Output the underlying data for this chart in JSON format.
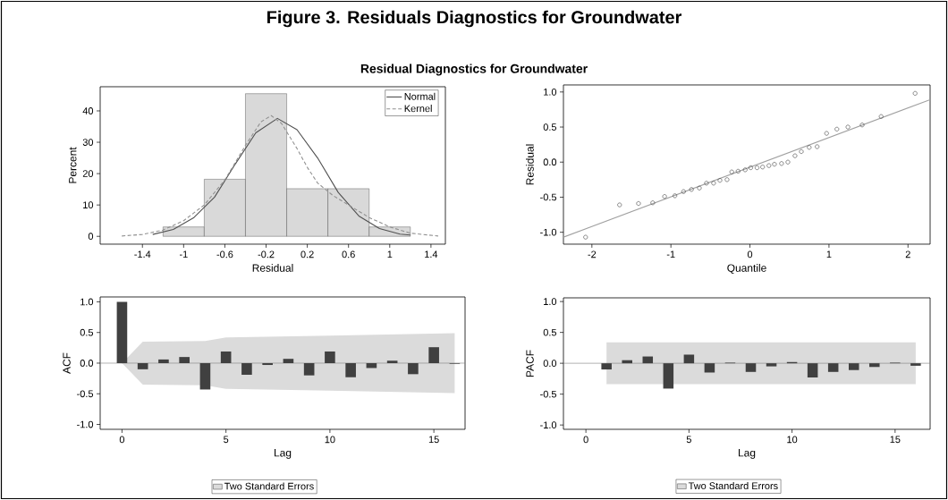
{
  "chart_data": [
    {
      "type": "histogram",
      "title": "Figure 3. Residuals Diagnostics for Groundwater",
      "subtitle": "Residual Diagnostics for Groundwater",
      "xlabel": "Residual",
      "ylabel": "Percent",
      "bins": [
        -1.2,
        -0.8,
        -0.4,
        0,
        0.4,
        0.8,
        1.2
      ],
      "values": [
        3,
        18.2,
        45.5,
        15.2,
        15.2,
        3
      ],
      "color": "#d9d9d9",
      "series": [
        {
          "name": "Normal",
          "type": "line",
          "color": "#505050",
          "line_style": "solid",
          "x": [
            -1.3,
            -1.1,
            -0.9,
            -0.7,
            -0.5,
            -0.3,
            -0.09,
            0.1,
            0.3,
            0.5,
            0.7,
            0.9,
            1.1,
            1.2
          ],
          "values": [
            0.6,
            2.2,
            6,
            12.5,
            23,
            33,
            37.6,
            34,
            25,
            14,
            6.5,
            2.5,
            0.7,
            0.4
          ]
        },
        {
          "name": "Kernel",
          "type": "line",
          "color": "#909090",
          "line_style": "dashed",
          "x": [
            -1.6,
            -1.4,
            -1.2,
            -1,
            -0.8,
            -0.6,
            -0.4,
            -0.25,
            -0.15,
            -0.05,
            0.1,
            0.2,
            0.3,
            0.45,
            0.6,
            0.8,
            1,
            1.2,
            1.47
          ],
          "values": [
            0.1,
            0.6,
            2,
            5,
            10,
            18,
            29,
            36.5,
            38.5,
            36,
            28,
            22,
            17,
            13,
            10,
            6,
            3,
            1,
            0.1
          ]
        }
      ],
      "xlim": [
        -1.81,
        1.54
      ],
      "ylim": [
        -2.5,
        47.7
      ],
      "xticks": [
        -1.4,
        -1,
        -0.6,
        -0.2,
        0.2,
        0.6,
        1,
        1.4
      ],
      "yticks": [
        0,
        10,
        20,
        30,
        40
      ],
      "legend": "top right"
    },
    {
      "type": "scatter",
      "xlabel": "Quantile",
      "ylabel": "Residual",
      "series": [
        {
          "type": "scatter",
          "marker": "circle",
          "color": "#404040",
          "x": [
            -2.08,
            -1.65,
            -1.41,
            -1.23,
            -1.08,
            -0.95,
            -0.84,
            -0.74,
            -0.64,
            -0.55,
            -0.46,
            -0.38,
            -0.29,
            -0.23,
            -0.15,
            -0.06,
            0.01,
            0.09,
            0.16,
            0.24,
            0.31,
            0.4,
            0.48,
            0.57,
            0.65,
            0.75,
            0.85,
            0.97,
            1.1,
            1.24,
            1.42,
            1.66,
            2.09
          ],
          "values": [
            -1.07,
            -0.61,
            -0.59,
            -0.58,
            -0.49,
            -0.48,
            -0.42,
            -0.39,
            -0.37,
            -0.3,
            -0.3,
            -0.26,
            -0.25,
            -0.14,
            -0.13,
            -0.11,
            -0.08,
            -0.08,
            -0.07,
            -0.05,
            -0.03,
            -0.02,
            0,
            0.09,
            0.15,
            0.21,
            0.22,
            0.41,
            0.47,
            0.5,
            0.53,
            0.65,
            0.98
          ]
        },
        {
          "type": "line",
          "color": "#a0a0a0",
          "x": [
            -2.36,
            2.28
          ],
          "values": [
            -1.07,
            0.89
          ]
        }
      ],
      "xlim": [
        -2.36,
        2.28
      ],
      "ylim": [
        -1.17,
        1.1
      ],
      "xticks": [
        -2,
        -1,
        0,
        1,
        2
      ],
      "yticks": [
        {
          "value": -1,
          "label": "-1.0"
        },
        {
          "value": -0.5,
          "label": "-0.5"
        },
        {
          "value": 0,
          "label": "0.0"
        },
        {
          "value": 0.5,
          "label": "0.5"
        },
        {
          "value": 1,
          "label": "1.0"
        }
      ]
    },
    {
      "type": "bar",
      "xlabel": "Lag",
      "ylabel": "ACF",
      "color": "#404040",
      "x": [
        0,
        1,
        2,
        3,
        4,
        5,
        6,
        7,
        8,
        9,
        10,
        11,
        12,
        13,
        14,
        15,
        16
      ],
      "values": [
        1,
        -0.1,
        0.06,
        0.1,
        -0.43,
        0.19,
        -0.19,
        -0.03,
        0.07,
        -0.2,
        0.19,
        -0.23,
        -0.08,
        0.04,
        -0.18,
        0.26,
        -0.01
      ],
      "series": [
        {
          "name": "Two Standard Errors",
          "type": "line",
          "color": "#808080",
          "x": [
            0,
            1,
            4,
            5,
            10,
            16
          ],
          "values": [
            0,
            0,
            0,
            0,
            0,
            0
          ],
          "lower": [
            0,
            -0.35,
            -0.36,
            -0.42,
            -0.45,
            -0.49
          ],
          "upper": [
            0,
            0.35,
            0.36,
            0.42,
            0.45,
            0.49
          ]
        }
      ],
      "ref_lines": [
        {
          "axis": "y",
          "value": 0,
          "color": "#808080"
        }
      ],
      "xlim": [
        -1.05,
        16.5
      ],
      "ylim": [
        -1.08,
        1.08
      ],
      "xticks": [
        0,
        5,
        10,
        15
      ],
      "yticks": [
        {
          "value": -1,
          "label": "-1.0"
        },
        {
          "value": -0.5,
          "label": "-0.5"
        },
        {
          "value": 0,
          "label": "0.0"
        },
        {
          "value": 0.5,
          "label": "0.5"
        },
        {
          "value": 1,
          "label": "1.0"
        }
      ],
      "legend": "bottom"
    },
    {
      "type": "bar",
      "xlabel": "Lag",
      "ylabel": "PACF",
      "color": "#404040",
      "x": [
        1,
        2,
        3,
        4,
        5,
        6,
        7,
        8,
        9,
        10,
        11,
        12,
        13,
        14,
        15,
        16
      ],
      "values": [
        -0.1,
        0.05,
        0.11,
        -0.41,
        0.14,
        -0.15,
        0.01,
        -0.14,
        -0.05,
        0.02,
        -0.23,
        -0.14,
        -0.11,
        -0.06,
        0.01,
        -0.04
      ],
      "series": [
        {
          "name": "Two Standard Errors",
          "type": "line",
          "color": "#808080",
          "x": [
            1,
            16
          ],
          "values": [
            0,
            0
          ],
          "lower": [
            -0.34,
            -0.34
          ],
          "upper": [
            0.34,
            0.34
          ]
        }
      ],
      "ref_lines": [
        {
          "axis": "y",
          "value": 0,
          "color": "#808080"
        }
      ],
      "xlim": [
        -1.09,
        16.7
      ],
      "ylim": [
        -1.07,
        1.06
      ],
      "xticks": [
        0,
        5,
        10,
        15
      ],
      "yticks": [
        {
          "value": -1,
          "label": "-1.0"
        },
        {
          "value": -0.5,
          "label": "-0.5"
        },
        {
          "value": 0,
          "label": "0.0"
        },
        {
          "value": 0.5,
          "label": "0.5"
        },
        {
          "value": 1,
          "label": "1.0"
        }
      ],
      "legend": "bottom"
    }
  ]
}
